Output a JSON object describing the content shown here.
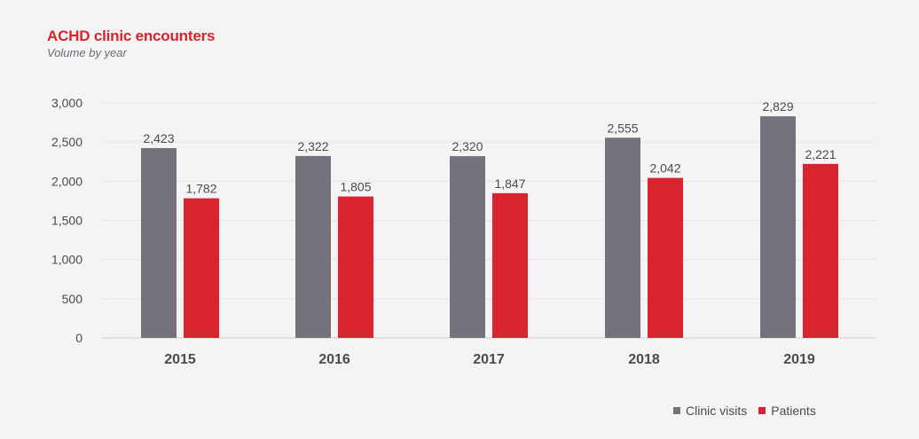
{
  "title": "ACHD clinic encounters",
  "subtitle": "Volume by year",
  "colors": {
    "clinic_visits": "#74737c",
    "patients": "#d9232e",
    "title": "#d9232e"
  },
  "chart_data": {
    "type": "bar",
    "title": "ACHD clinic encounters",
    "subtitle": "Volume by year",
    "categories": [
      "2015",
      "2016",
      "2017",
      "2018",
      "2019"
    ],
    "series": [
      {
        "name": "Clinic visits",
        "values": [
          2423,
          2322,
          2320,
          2555,
          2829
        ],
        "labels": [
          "2,423",
          "2,322",
          "2,320",
          "2,555",
          "2,829"
        ]
      },
      {
        "name": "Patients",
        "values": [
          1782,
          1805,
          1847,
          2042,
          2221
        ],
        "labels": [
          "1,782",
          "1,805",
          "1,847",
          "2,042",
          "2,221"
        ]
      }
    ],
    "ylim": [
      0,
      3000
    ],
    "yticks": [
      0,
      500,
      1000,
      1500,
      2000,
      2500,
      3000
    ],
    "ytick_labels": [
      "0",
      "500",
      "1,000",
      "1,500",
      "2,000",
      "2,500",
      "3,000"
    ],
    "xlabel": "",
    "ylabel": "",
    "grid": true,
    "legend_position": "bottom-right"
  }
}
